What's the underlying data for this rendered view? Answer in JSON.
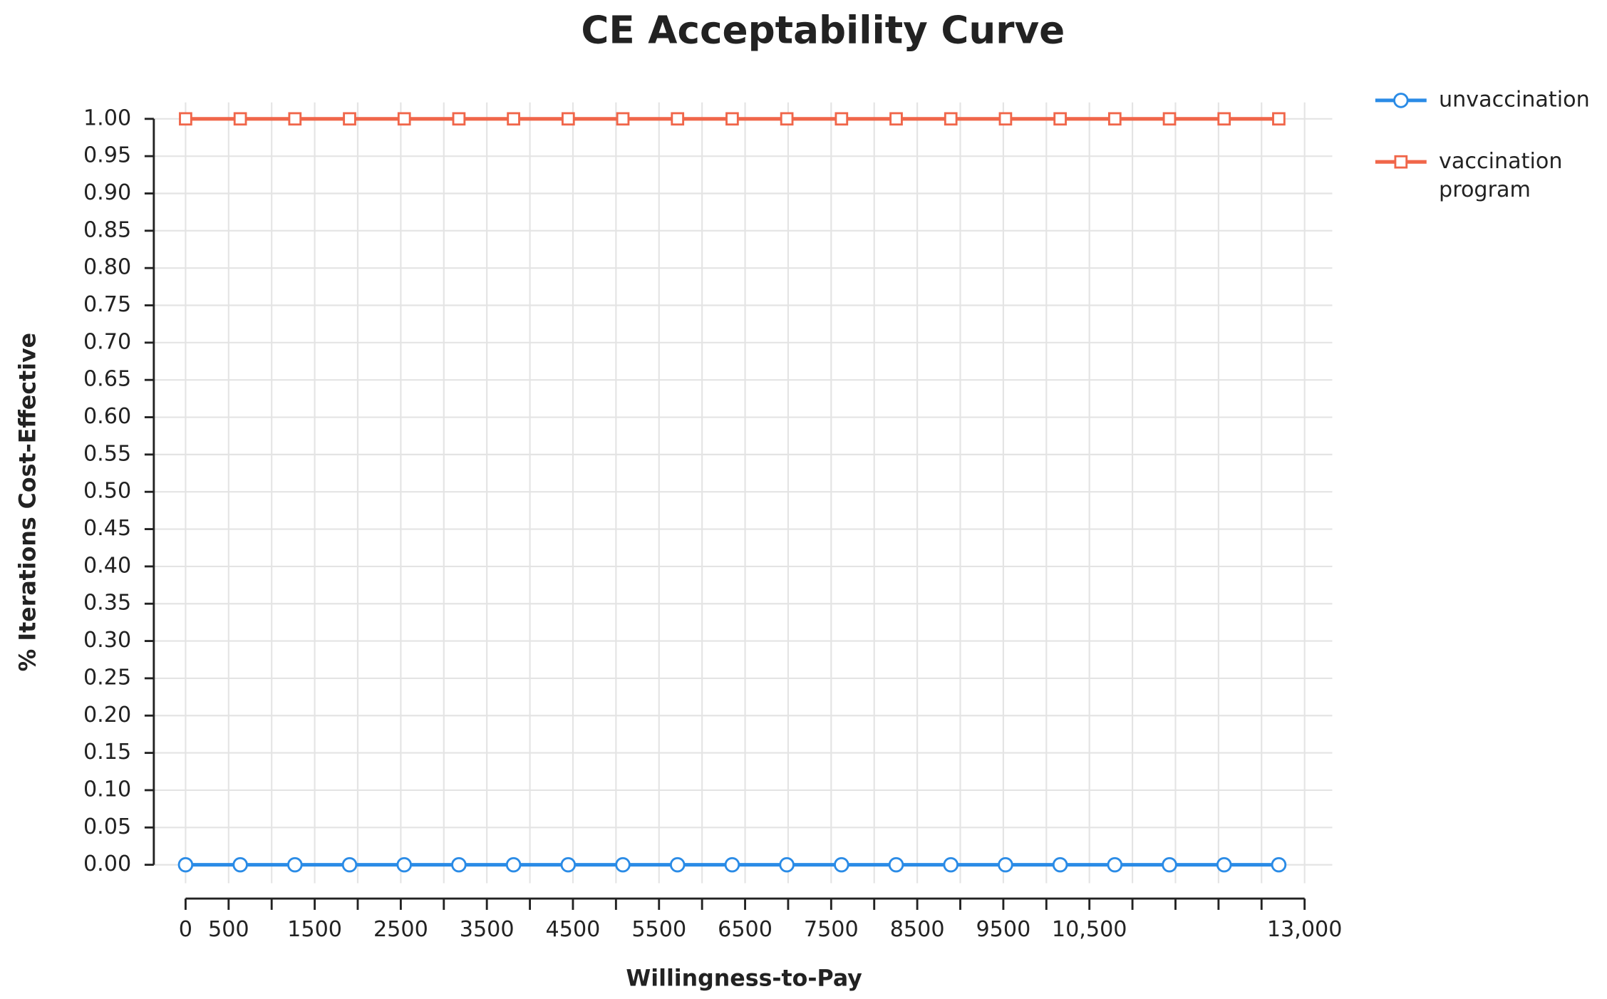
{
  "chart_data": {
    "type": "line",
    "title": "CE Acceptability Curve",
    "x_label": "Willingness-to-Pay",
    "y_label": "% Iterations Cost-Effective",
    "x": [
      0,
      635,
      1270,
      1905,
      2540,
      3175,
      3810,
      4445,
      5080,
      5715,
      6350,
      6985,
      7620,
      8255,
      8890,
      9525,
      10160,
      10795,
      11430,
      12065,
      12700
    ],
    "series": [
      {
        "name": "unvaccination",
        "color": "#2a8be6",
        "marker": "circle",
        "values": [
          0,
          0,
          0,
          0,
          0,
          0,
          0,
          0,
          0,
          0,
          0,
          0,
          0,
          0,
          0,
          0,
          0,
          0,
          0,
          0,
          0
        ]
      },
      {
        "name": "vaccination program",
        "color": "#f0664a",
        "marker": "square",
        "values": [
          1,
          1,
          1,
          1,
          1,
          1,
          1,
          1,
          1,
          1,
          1,
          1,
          1,
          1,
          1,
          1,
          1,
          1,
          1,
          1,
          1
        ]
      }
    ],
    "xlim": [
      0,
      13000
    ],
    "xticks": [
      0,
      500,
      1500,
      2500,
      3500,
      4500,
      5500,
      6500,
      7500,
      8500,
      9500,
      {
        "value": 10500,
        "label": "10,500"
      },
      {
        "value": 13000,
        "label": "13,000"
      }
    ],
    "x_minor_ticks": [
      1000,
      2000,
      3000,
      4000,
      5000,
      6000,
      7000,
      8000,
      9000,
      10000,
      11000,
      11500,
      12000,
      12500
    ],
    "ylim": [
      0,
      1
    ],
    "yticks": [
      {
        "value": 0,
        "label": "0.00"
      },
      {
        "value": 0.05,
        "label": "0.05"
      },
      {
        "value": 0.1,
        "label": "0.10"
      },
      {
        "value": 0.15,
        "label": "0.15"
      },
      {
        "value": 0.2,
        "label": "0.20"
      },
      {
        "value": 0.25,
        "label": "0.25"
      },
      {
        "value": 0.3,
        "label": "0.30"
      },
      {
        "value": 0.35,
        "label": "0.35"
      },
      {
        "value": 0.4,
        "label": "0.40"
      },
      {
        "value": 0.45,
        "label": "0.45"
      },
      {
        "value": 0.5,
        "label": "0.50"
      },
      {
        "value": 0.55,
        "label": "0.55"
      },
      {
        "value": 0.6,
        "label": "0.60"
      },
      {
        "value": 0.65,
        "label": "0.65"
      },
      {
        "value": 0.7,
        "label": "0.70"
      },
      {
        "value": 0.75,
        "label": "0.75"
      },
      {
        "value": 0.8,
        "label": "0.80"
      },
      {
        "value": 0.85,
        "label": "0.85"
      },
      {
        "value": 0.9,
        "label": "0.90"
      },
      {
        "value": 0.95,
        "label": "0.95"
      },
      {
        "value": 1,
        "label": "1.00"
      }
    ],
    "grid": true,
    "legend": "top-right"
  }
}
